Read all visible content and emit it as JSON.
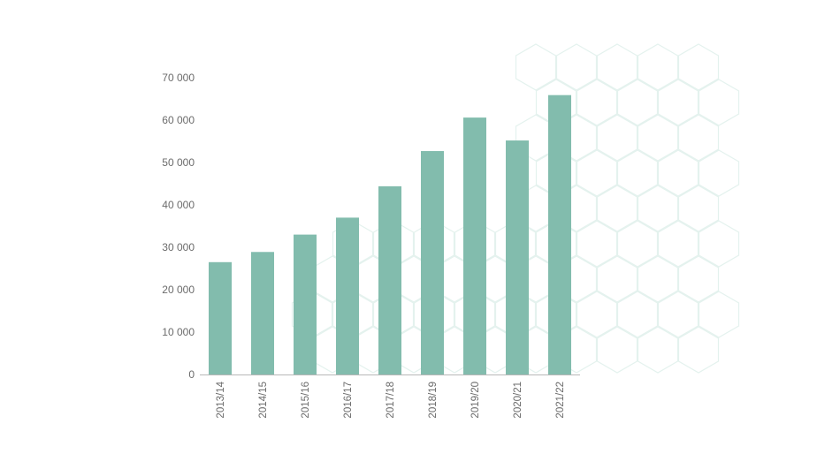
{
  "chart_data": {
    "type": "bar",
    "categories": [
      "2013/14",
      "2014/15",
      "2015/16",
      "2016/17",
      "2017/18",
      "2018/19",
      "2019/20",
      "2020/21",
      "2021/22"
    ],
    "values": [
      26500,
      28900,
      33000,
      37000,
      44400,
      52700,
      60600,
      55200,
      65900
    ],
    "y_ticks": [
      "0",
      "10 000",
      "20 000",
      "30 000",
      "40 000",
      "50 000",
      "60 000",
      "70 000"
    ],
    "ylim": [
      0,
      70000
    ],
    "grid": false,
    "bar_color": "#82bcad",
    "axis_color": "#b8b8b8",
    "background_pattern_color": "#e4f2ee"
  }
}
